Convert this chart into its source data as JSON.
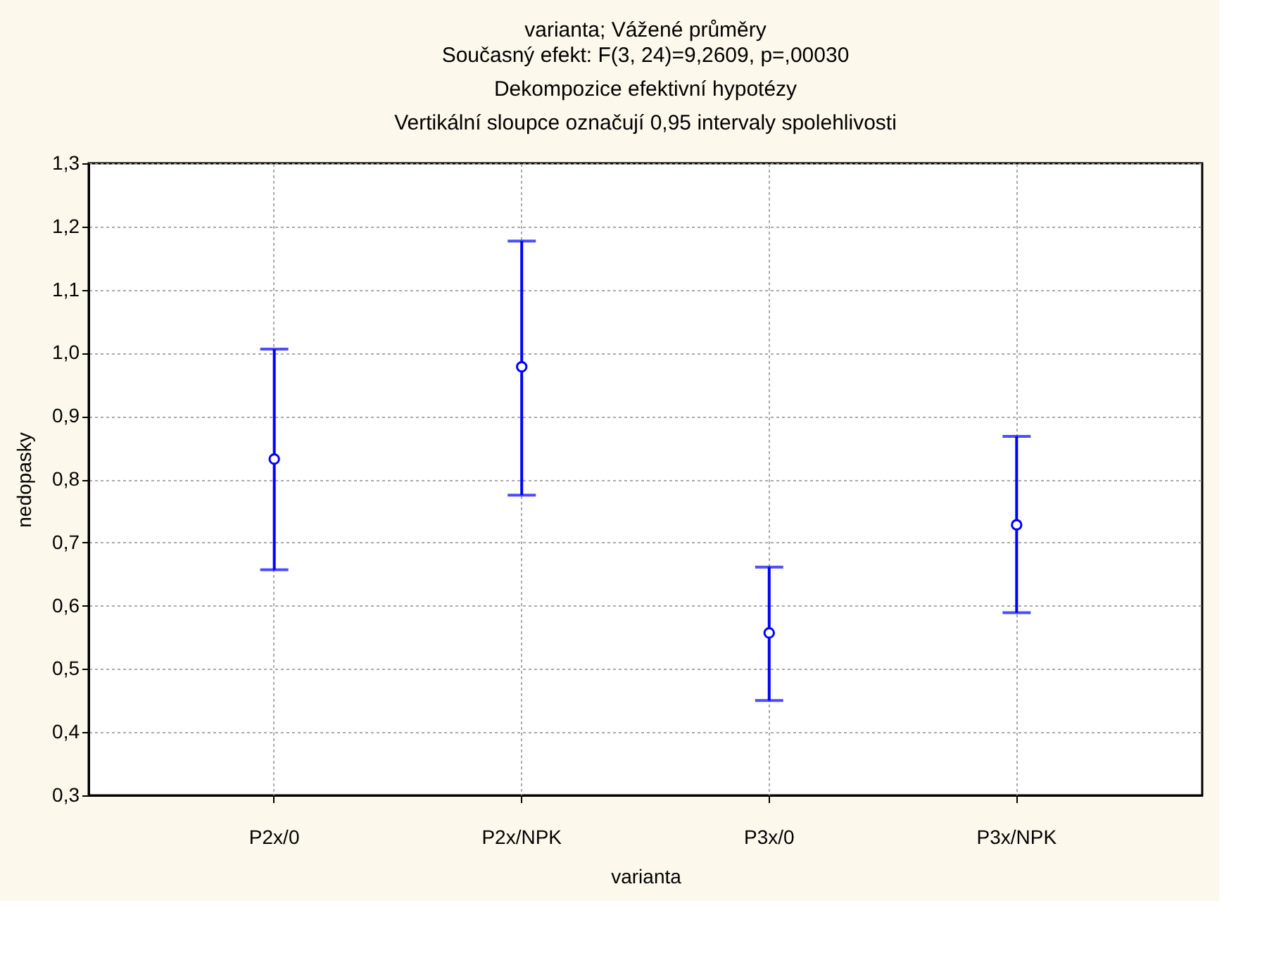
{
  "chart_data": {
    "type": "scatter",
    "title": "varianta; Vážené průměry",
    "subtitle": "Současný efekt: F(3, 24)=9,2609, p=,00030\nDekompozice efektivní hypotézy\nVertikální sloupce označují 0,95 intervaly spolehlivosti",
    "xlabel": "varianta",
    "ylabel": "nedopasky",
    "categories": [
      "P2x/0",
      "P2x/NPK",
      "P3x/0",
      "P3x/NPK"
    ],
    "series": [
      {
        "color": "#0000ff",
        "values": [
          0.832,
          0.978,
          0.557,
          0.728
        ],
        "errors": [
          [
            0.657,
            1.006
          ],
          [
            0.775,
            1.177
          ],
          [
            0.45,
            0.661
          ],
          [
            0.589,
            0.868
          ]
        ]
      }
    ],
    "ylim": [
      0.3,
      1.3
    ],
    "yticks": [
      {
        "value": 0.3,
        "label": "0,3"
      },
      {
        "value": 0.4,
        "label": "0,4"
      },
      {
        "value": 0.5,
        "label": "0,5"
      },
      {
        "value": 0.6,
        "label": "0,6"
      },
      {
        "value": 0.7,
        "label": "0,7"
      },
      {
        "value": 0.8,
        "label": "0,8"
      },
      {
        "value": 0.9,
        "label": "0,9"
      },
      {
        "value": 1.0,
        "label": "1,0"
      },
      {
        "value": 1.1,
        "label": "1,1"
      },
      {
        "value": 1.2,
        "label": "1,2"
      },
      {
        "value": 1.3,
        "label": "1,3"
      }
    ],
    "grid": true,
    "marker": "circle"
  }
}
